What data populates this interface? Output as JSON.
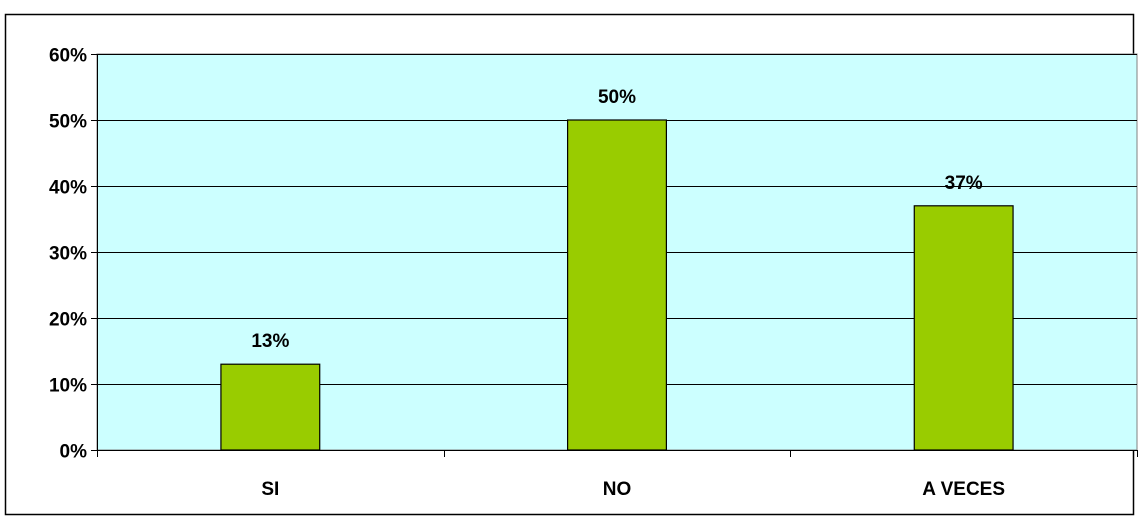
{
  "chart_data": {
    "type": "bar",
    "categories": [
      "SI",
      "NO",
      "A VECES"
    ],
    "values": [
      13,
      50,
      37
    ],
    "data_labels": [
      "13%",
      "50%",
      "37%"
    ],
    "yticks": [
      {
        "value": 0,
        "label": "0%"
      },
      {
        "value": 10,
        "label": "10%"
      },
      {
        "value": 20,
        "label": "20%"
      },
      {
        "value": 30,
        "label": "30%"
      },
      {
        "value": 40,
        "label": "40%"
      },
      {
        "value": 50,
        "label": "50%"
      },
      {
        "value": 60,
        "label": "60%"
      }
    ],
    "ylim": [
      0,
      60
    ],
    "title": "",
    "xlabel": "",
    "ylabel": "",
    "grid": true,
    "legend": "none",
    "colors": {
      "bar_fill": "#99CC00",
      "bar_stroke": "#000000",
      "plot_background": "#CCFFFF",
      "gridline": "#000000",
      "frame": "#000000"
    }
  }
}
